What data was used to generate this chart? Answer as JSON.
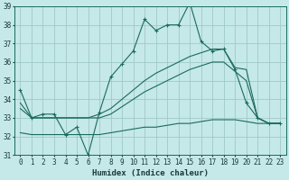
{
  "background_color": "#c5e8e8",
  "grid_color": "#a0c8c8",
  "line_color": "#1a6b5a",
  "xlim": [
    -0.5,
    23.5
  ],
  "ylim": [
    31,
    39
  ],
  "yticks": [
    31,
    32,
    33,
    34,
    35,
    36,
    37,
    38,
    39
  ],
  "xticks": [
    0,
    1,
    2,
    3,
    4,
    5,
    6,
    7,
    8,
    9,
    10,
    11,
    12,
    13,
    14,
    15,
    16,
    17,
    18,
    19,
    20,
    21,
    22,
    23
  ],
  "xlabel": "Humidex (Indice chaleur)",
  "series1_x": [
    0,
    1,
    2,
    3,
    4,
    5,
    6,
    7,
    8,
    9,
    10,
    11,
    12,
    13,
    14,
    15,
    16,
    17,
    18,
    19,
    20,
    21,
    22,
    23
  ],
  "series1_y": [
    34.5,
    33.0,
    33.2,
    33.2,
    32.1,
    32.5,
    31.0,
    33.3,
    35.2,
    35.9,
    36.6,
    38.3,
    37.7,
    38.0,
    38.0,
    39.2,
    37.1,
    36.6,
    36.7,
    35.6,
    33.8,
    33.0,
    32.7,
    32.7
  ],
  "series2_x": [
    0,
    1,
    2,
    3,
    4,
    5,
    6,
    7,
    8,
    9,
    10,
    11,
    12,
    13,
    14,
    15,
    16,
    17,
    18,
    19,
    20,
    21,
    22,
    23
  ],
  "series2_y": [
    33.8,
    33.0,
    33.0,
    33.0,
    33.0,
    33.0,
    33.0,
    33.2,
    33.5,
    34.0,
    34.5,
    35.0,
    35.4,
    35.7,
    36.0,
    36.3,
    36.5,
    36.7,
    36.7,
    35.7,
    35.6,
    33.0,
    32.7,
    32.7
  ],
  "series3_x": [
    0,
    1,
    2,
    3,
    4,
    5,
    6,
    7,
    8,
    9,
    10,
    11,
    12,
    13,
    14,
    15,
    16,
    17,
    18,
    19,
    20,
    21,
    22,
    23
  ],
  "series3_y": [
    33.5,
    33.0,
    33.0,
    33.0,
    33.0,
    33.0,
    33.0,
    33.0,
    33.2,
    33.6,
    34.0,
    34.4,
    34.7,
    35.0,
    35.3,
    35.6,
    35.8,
    36.0,
    36.0,
    35.5,
    35.0,
    33.0,
    32.7,
    32.7
  ],
  "series4_x": [
    0,
    1,
    2,
    3,
    4,
    5,
    6,
    7,
    8,
    9,
    10,
    11,
    12,
    13,
    14,
    15,
    16,
    17,
    18,
    19,
    20,
    21,
    22,
    23
  ],
  "series4_y": [
    32.2,
    32.1,
    32.1,
    32.1,
    32.1,
    32.1,
    32.1,
    32.1,
    32.2,
    32.3,
    32.4,
    32.5,
    32.5,
    32.6,
    32.7,
    32.7,
    32.8,
    32.9,
    32.9,
    32.9,
    32.8,
    32.7,
    32.7,
    32.7
  ]
}
